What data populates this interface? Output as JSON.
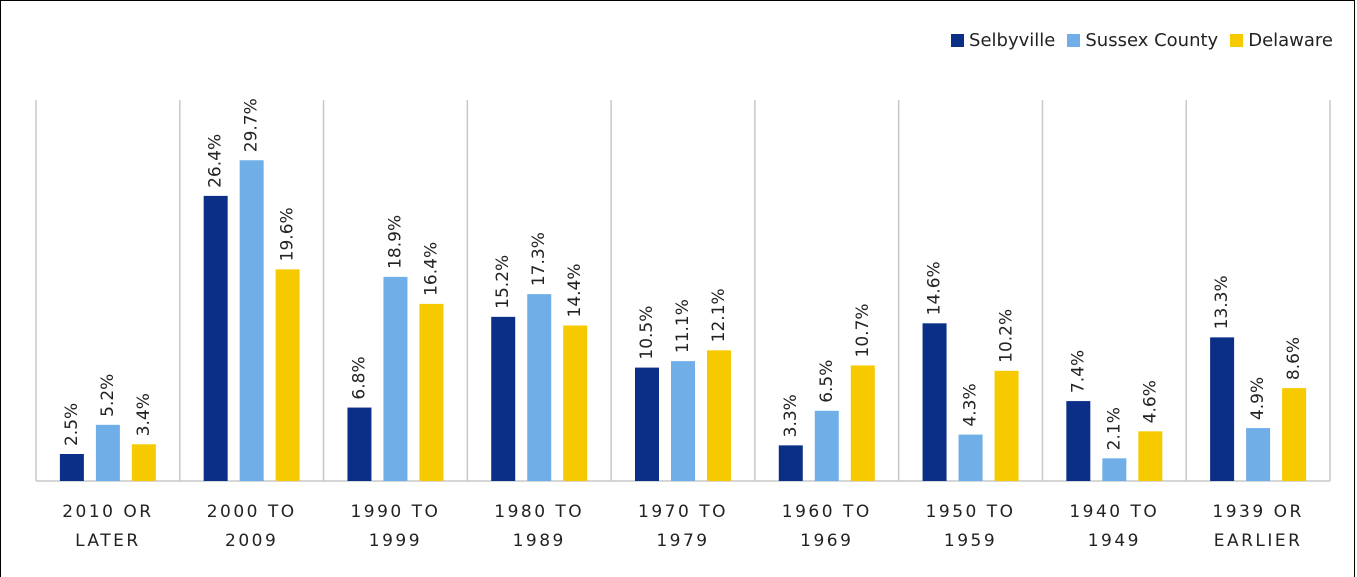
{
  "chart_data": {
    "type": "bar",
    "categories": [
      "2010 OR LATER",
      "2000 TO 2009",
      "1990 TO 1999",
      "1980 TO 1989",
      "1970 TO 1979",
      "1960 TO 1969",
      "1950 TO 1959",
      "1940 TO 1949",
      "1939 OR EARLIER"
    ],
    "series": [
      {
        "name": "Selbyville",
        "color": "#0b2f86",
        "values": [
          2.5,
          26.4,
          6.8,
          15.2,
          10.5,
          3.3,
          14.6,
          7.4,
          13.3
        ],
        "value_labels": [
          "2.5%",
          "26.4%",
          "6.8%",
          "15.2%",
          "10.5%",
          "3.3%",
          "14.6%",
          "7.4%",
          "13.3%"
        ]
      },
      {
        "name": "Sussex County",
        "color": "#70aee8",
        "values": [
          5.2,
          29.7,
          18.9,
          17.3,
          11.1,
          6.5,
          4.3,
          2.1,
          4.9
        ],
        "value_labels": [
          "5.2%",
          "29.7%",
          "18.9%",
          "17.3%",
          "11.1%",
          "6.5%",
          "4.3%",
          "2.1%",
          "4.9%"
        ]
      },
      {
        "name": "Delaware",
        "color": "#f7ca00",
        "values": [
          3.4,
          19.6,
          16.4,
          14.4,
          12.1,
          10.7,
          10.2,
          4.6,
          8.6
        ],
        "value_labels": [
          "3.4%",
          "19.6%",
          "16.4%",
          "14.4%",
          "12.1%",
          "10.7%",
          "10.2%",
          "4.6%",
          "8.6%"
        ]
      }
    ],
    "ylim": [
      0,
      35
    ],
    "legend": "top-right"
  }
}
